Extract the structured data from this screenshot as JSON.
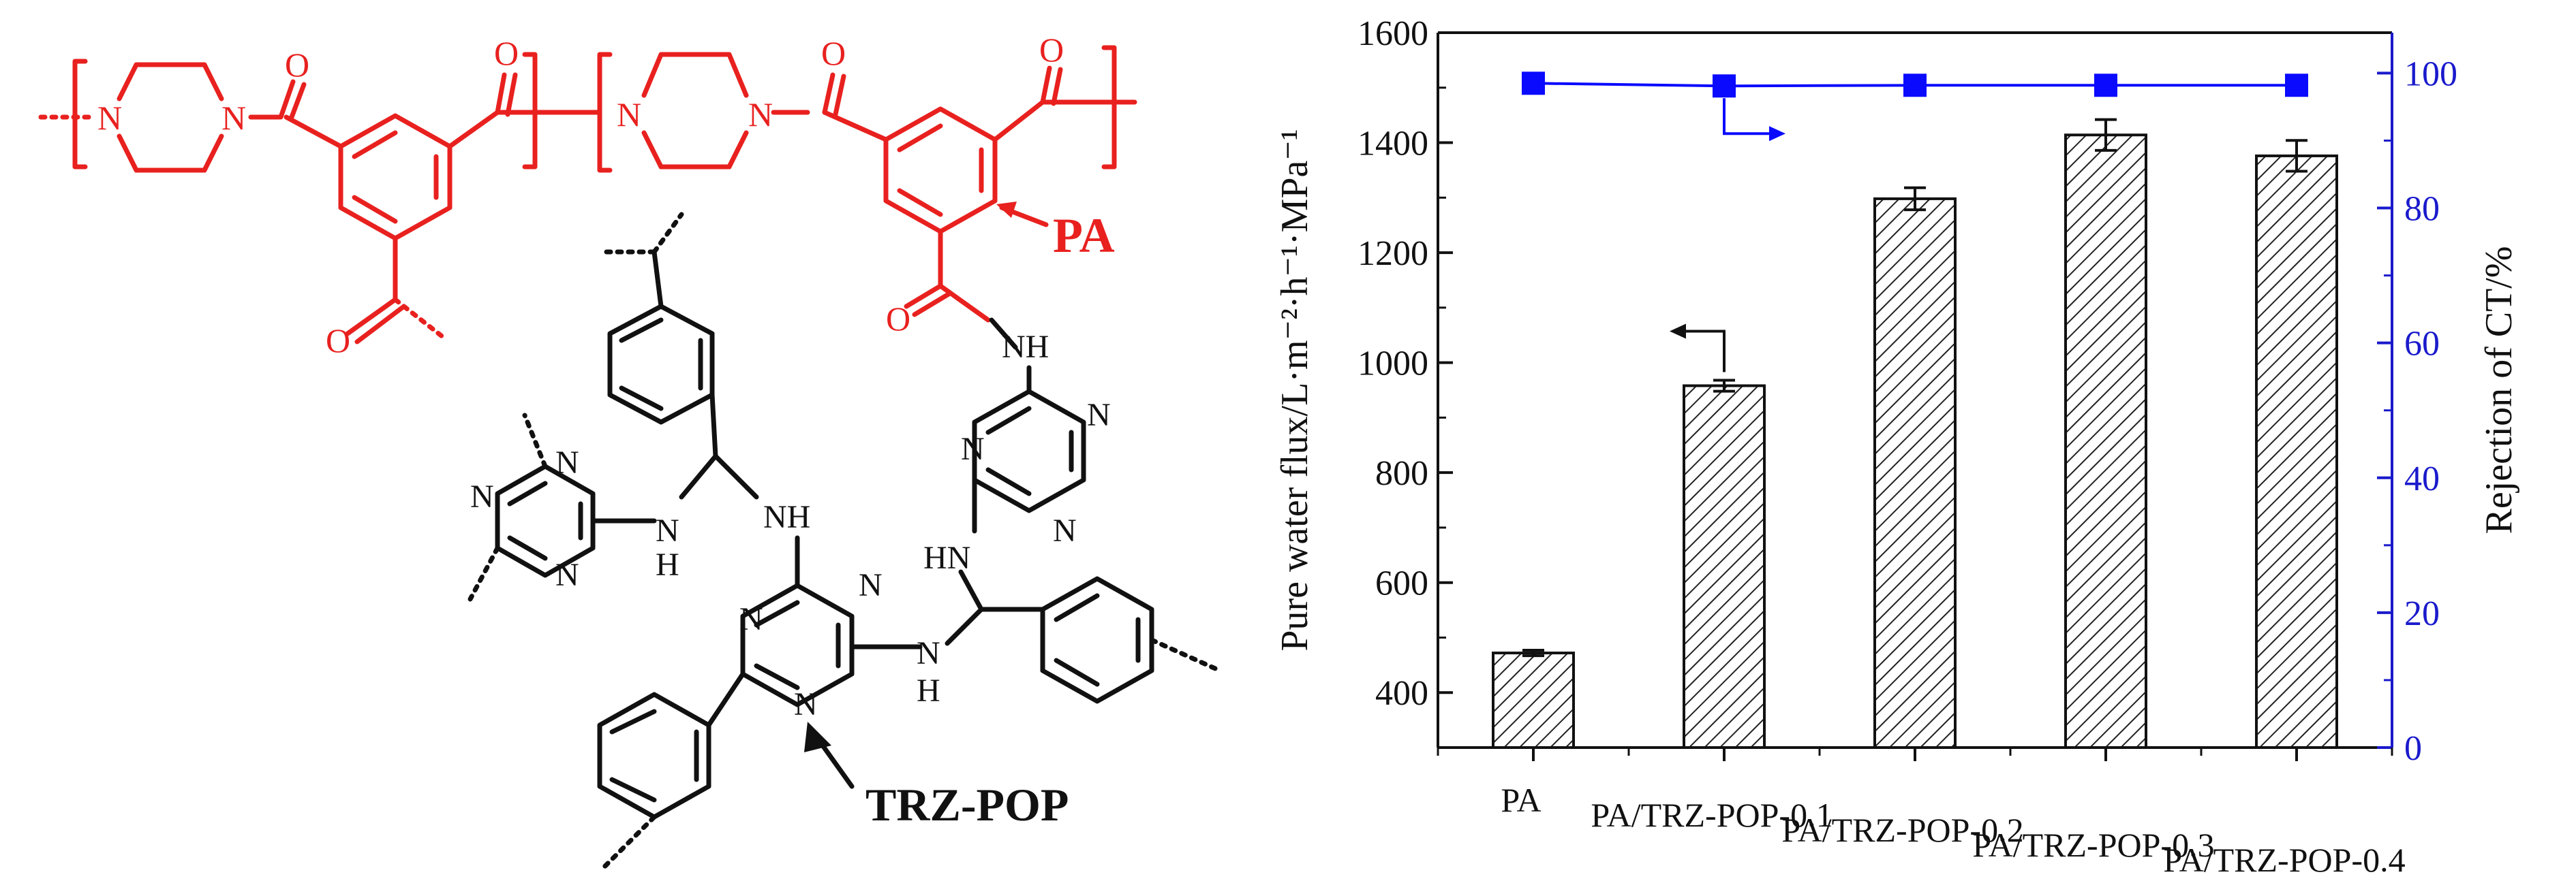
{
  "structure": {
    "pa_label": "PA",
    "trz_label": "TRZ-POP",
    "atoms": {
      "N": "N",
      "O": "O",
      "NH": "NH",
      "HN": "HN",
      "H": "H"
    }
  },
  "chart_data": {
    "type": "bar",
    "categories": [
      "PA",
      "PA/TRZ-POP-0.1",
      "PA/TRZ-POP-0.2",
      "PA/TRZ-POP-0.3",
      "PA/TRZ-POP-0.4"
    ],
    "series": [
      {
        "name": "",
        "kind": "bar",
        "axis": "left",
        "values": [
          472,
          958,
          1298,
          1414,
          1376
        ],
        "errors": [
          5,
          10,
          20,
          28,
          28
        ],
        "pattern": "diagonal-hatch",
        "color": "#111111"
      },
      {
        "name": "",
        "kind": "line-markers",
        "axis": "right",
        "values": [
          98.5,
          98.1,
          98.2,
          98.2,
          98.2
        ],
        "marker": "square",
        "color": "#0a0aff"
      }
    ],
    "ylabel": "Pure water flux/L·m⁻²·h⁻¹·MPa⁻¹",
    "y2label": "Rejection of CT/%",
    "ylim": [
      300,
      1600
    ],
    "y2lim": [
      0,
      106
    ],
    "yticks": [
      400,
      600,
      800,
      1000,
      1200,
      1400,
      1600
    ],
    "y2ticks": [
      0,
      20,
      40,
      60,
      80,
      100
    ],
    "ytick_labels": [
      "400",
      "600",
      "800",
      "1000",
      "1200",
      "1400",
      "1600"
    ],
    "y2tick_labels": [
      "0",
      "20",
      "40",
      "60",
      "80",
      "100"
    ],
    "axis_color_right": "#1a1acc",
    "axis_indicators": {
      "bars": "left",
      "rejection": "right"
    }
  }
}
